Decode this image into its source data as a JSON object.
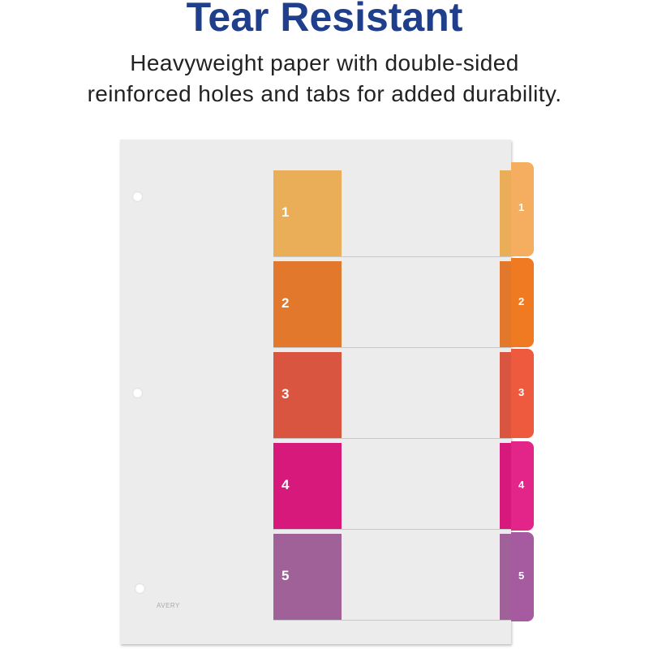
{
  "header": {
    "title": "Tear Resistant",
    "subtitle_lines": [
      "Heavyweight paper with double-sided",
      "reinforced holes and tabs for added durability."
    ]
  },
  "divider": {
    "logo": "AVERY",
    "tabs": [
      {
        "label": "1",
        "color": "#e9ae57",
        "tab_color": "#f5ad5f"
      },
      {
        "label": "2",
        "color": "#e2782b",
        "tab_color": "#f07a22"
      },
      {
        "label": "3",
        "color": "#d9553f",
        "tab_color": "#ee5a3e"
      },
      {
        "label": "4",
        "color": "#d6197a",
        "tab_color": "#e3258a"
      },
      {
        "label": "5",
        "color": "#a06098",
        "tab_color": "#a65aa0"
      }
    ]
  }
}
